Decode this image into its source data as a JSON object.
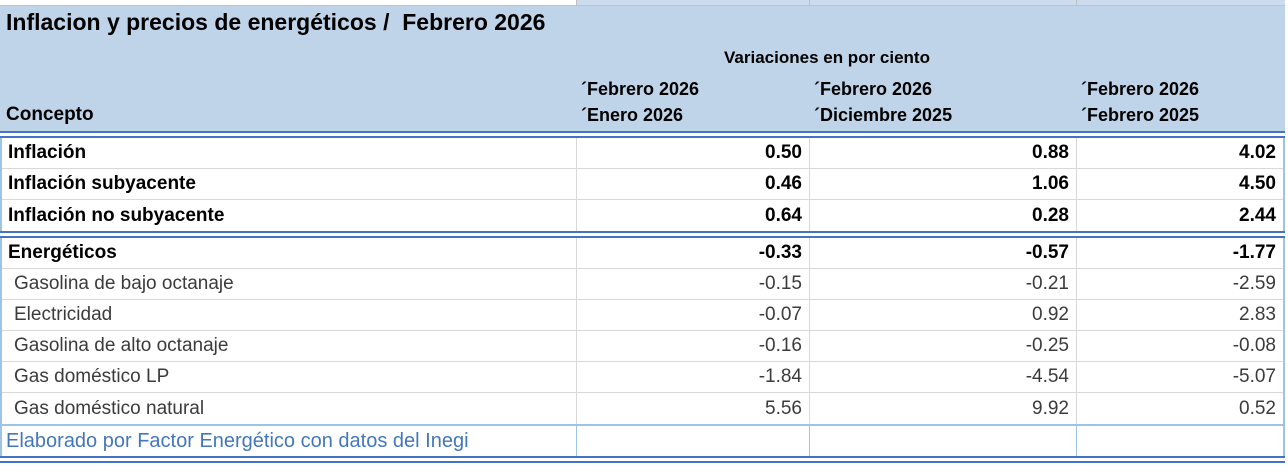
{
  "title": "Inflacion y precios de energéticos /  Febrero 2026",
  "table": {
    "concept_header": "Concepto",
    "group_header": "Variaciones en por ciento",
    "columns": [
      {
        "line1": "´Febrero 2026",
        "line2": "´Enero 2026"
      },
      {
        "line1": "´Febrero 2026",
        "line2": "´Diciembre 2025"
      },
      {
        "line1": "´Febrero 2026",
        "line2": "´Febrero 2025"
      }
    ],
    "sections": [
      {
        "rows": [
          {
            "concept": "Inflación",
            "values": [
              "0.50",
              "0.88",
              "4.02"
            ]
          },
          {
            "concept": "Inflación subyacente",
            "values": [
              "0.46",
              "1.06",
              "4.50"
            ]
          },
          {
            "concept": "Inflación no subyacente",
            "values": [
              "0.64",
              "0.28",
              "2.44"
            ]
          }
        ]
      },
      {
        "rows": [
          {
            "concept": "Energéticos",
            "values": [
              "-0.33",
              "-0.57",
              "-1.77"
            ]
          },
          {
            "concept": "Gasolina de bajo octanaje",
            "values": [
              "-0.15",
              "-0.21",
              "-2.59"
            ]
          },
          {
            "concept": "Electricidad",
            "values": [
              "-0.07",
              "0.92",
              "2.83"
            ]
          },
          {
            "concept": "Gasolina de alto octanaje",
            "values": [
              "-0.16",
              "-0.25",
              "-0.08"
            ]
          },
          {
            "concept": "Gas doméstico LP",
            "values": [
              "-1.84",
              "-4.54",
              "-5.07"
            ]
          },
          {
            "concept": "Gas doméstico natural",
            "values": [
              "5.56",
              "9.92",
              "0.52"
            ]
          }
        ]
      }
    ],
    "footer": "Elaborado por Factor Energético con datos del Inegi"
  },
  "colors": {
    "header_bg": "#bfd4e9",
    "accent_border": "#4472c4",
    "light_border": "#9dc3e6",
    "grid_line": "#d8d8d8",
    "footer_text": "#4377bb"
  },
  "chart_data": {
    "type": "table",
    "title": "Inflacion y precios de energéticos / Febrero 2026",
    "group_header": "Variaciones en por ciento",
    "columns": [
      "Concepto",
      "Febrero 2026 / Enero 2026",
      "Febrero 2026 / Diciembre 2025",
      "Febrero 2026 / Febrero 2025"
    ],
    "rows": [
      [
        "Inflación",
        0.5,
        0.88,
        4.02
      ],
      [
        "Inflación subyacente",
        0.46,
        1.06,
        4.5
      ],
      [
        "Inflación no subyacente",
        0.64,
        0.28,
        2.44
      ],
      [
        "Energéticos",
        -0.33,
        -0.57,
        -1.77
      ],
      [
        "Gasolina de bajo octanaje",
        -0.15,
        -0.21,
        -2.59
      ],
      [
        "Electricidad",
        -0.07,
        0.92,
        2.83
      ],
      [
        "Gasolina de alto octanaje",
        -0.16,
        -0.25,
        -0.08
      ],
      [
        "Gas doméstico LP",
        -1.84,
        -4.54,
        -5.07
      ],
      [
        "Gas doméstico natural",
        5.56,
        9.92,
        0.52
      ]
    ],
    "source_note": "Elaborado por Factor Energético con datos del Inegi"
  }
}
